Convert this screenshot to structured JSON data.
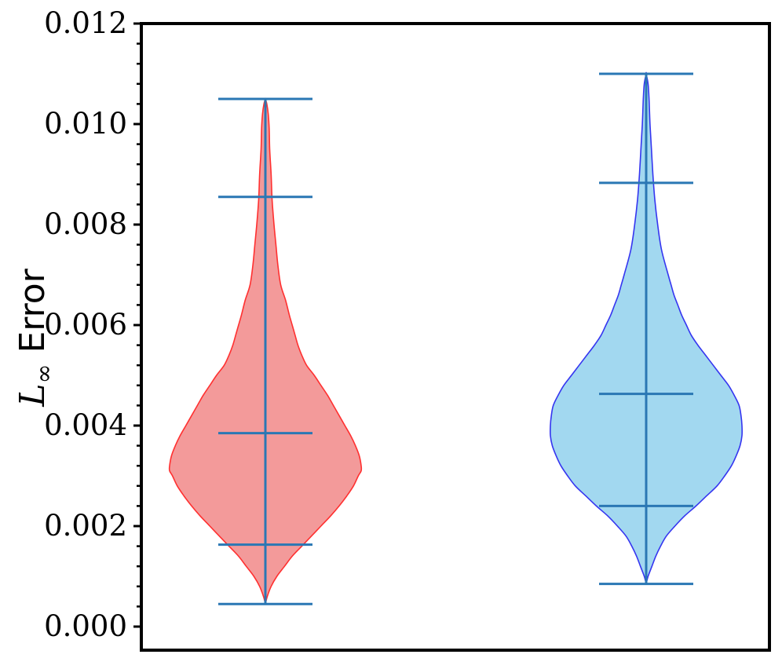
{
  "chart_data": {
    "type": "violin",
    "ylabel": {
      "symbol": "L",
      "subscript": "∞",
      "text": "Error"
    },
    "ylim": [
      0,
      0.012
    ],
    "yticks": [
      "0.000",
      "0.002",
      "0.004",
      "0.006",
      "0.008",
      "0.010",
      "0.012"
    ],
    "grid": false,
    "legend": "none",
    "series": [
      {
        "fill_color": "#f39a9a",
        "edge_color": "#ff3030",
        "line_color": "#2a77b4",
        "min": 0.00045,
        "max": 0.0105,
        "quantiles": [
          0.00163,
          0.00385,
          0.00855
        ],
        "density_profile": [
          [
            0.00045,
            0.0
          ],
          [
            0.0006,
            0.02
          ],
          [
            0.0008,
            0.06
          ],
          [
            0.001,
            0.12
          ],
          [
            0.0012,
            0.2
          ],
          [
            0.0014,
            0.28
          ],
          [
            0.0016,
            0.38
          ],
          [
            0.0018,
            0.48
          ],
          [
            0.002,
            0.58
          ],
          [
            0.0022,
            0.68
          ],
          [
            0.0024,
            0.77
          ],
          [
            0.0026,
            0.85
          ],
          [
            0.0028,
            0.92
          ],
          [
            0.003,
            0.97
          ],
          [
            0.0031,
            1.0
          ],
          [
            0.0032,
            1.0
          ],
          [
            0.0034,
            0.98
          ],
          [
            0.0036,
            0.94
          ],
          [
            0.0038,
            0.89
          ],
          [
            0.004,
            0.83
          ],
          [
            0.0042,
            0.77
          ],
          [
            0.0044,
            0.71
          ],
          [
            0.0046,
            0.65
          ],
          [
            0.0048,
            0.58
          ],
          [
            0.005,
            0.51
          ],
          [
            0.0052,
            0.43
          ],
          [
            0.0054,
            0.38
          ],
          [
            0.0056,
            0.34
          ],
          [
            0.0058,
            0.31
          ],
          [
            0.006,
            0.28
          ],
          [
            0.0062,
            0.25
          ],
          [
            0.0065,
            0.21
          ],
          [
            0.0068,
            0.16
          ],
          [
            0.0072,
            0.13
          ],
          [
            0.0076,
            0.11
          ],
          [
            0.008,
            0.09
          ],
          [
            0.0085,
            0.07
          ],
          [
            0.009,
            0.06
          ],
          [
            0.0095,
            0.045
          ],
          [
            0.0099,
            0.04
          ],
          [
            0.0102,
            0.03
          ],
          [
            0.0104,
            0.015
          ],
          [
            0.0105,
            0.0
          ]
        ]
      },
      {
        "fill_color": "#a2d8f0",
        "edge_color": "#3535f0",
        "line_color": "#2a77b4",
        "min": 0.00085,
        "max": 0.011,
        "quantiles": [
          0.0024,
          0.00463,
          0.00883
        ],
        "density_profile": [
          [
            0.00085,
            0.0
          ],
          [
            0.001,
            0.02
          ],
          [
            0.0012,
            0.06
          ],
          [
            0.0014,
            0.1
          ],
          [
            0.0016,
            0.15
          ],
          [
            0.0018,
            0.21
          ],
          [
            0.002,
            0.3
          ],
          [
            0.0022,
            0.4
          ],
          [
            0.0024,
            0.52
          ],
          [
            0.0026,
            0.63
          ],
          [
            0.0028,
            0.74
          ],
          [
            0.003,
            0.82
          ],
          [
            0.0032,
            0.89
          ],
          [
            0.0034,
            0.94
          ],
          [
            0.0036,
            0.98
          ],
          [
            0.0038,
            1.0
          ],
          [
            0.004,
            1.0
          ],
          [
            0.0042,
            0.99
          ],
          [
            0.0044,
            0.97
          ],
          [
            0.0046,
            0.92
          ],
          [
            0.0048,
            0.86
          ],
          [
            0.005,
            0.78
          ],
          [
            0.0052,
            0.7
          ],
          [
            0.0054,
            0.62
          ],
          [
            0.0056,
            0.54
          ],
          [
            0.0058,
            0.47
          ],
          [
            0.006,
            0.42
          ],
          [
            0.0062,
            0.37
          ],
          [
            0.0064,
            0.33
          ],
          [
            0.0066,
            0.29
          ],
          [
            0.0068,
            0.26
          ],
          [
            0.007,
            0.23
          ],
          [
            0.0075,
            0.16
          ],
          [
            0.008,
            0.12
          ],
          [
            0.0085,
            0.09
          ],
          [
            0.009,
            0.07
          ],
          [
            0.0095,
            0.055
          ],
          [
            0.01,
            0.04
          ],
          [
            0.0105,
            0.03
          ],
          [
            0.0108,
            0.02
          ],
          [
            0.011,
            0.0
          ]
        ]
      }
    ]
  }
}
